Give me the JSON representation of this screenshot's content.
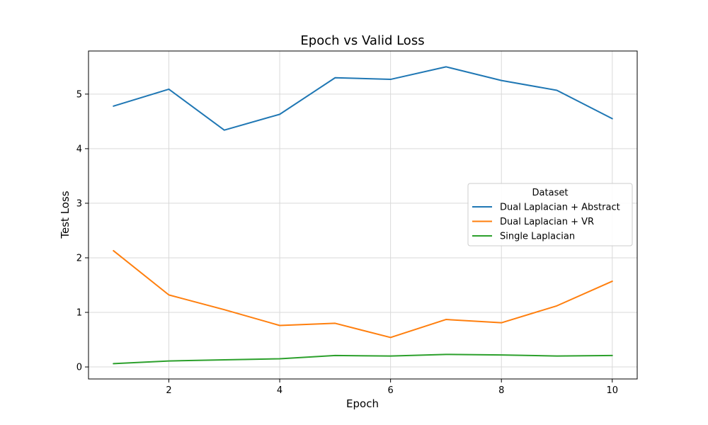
{
  "chart_data": {
    "type": "line",
    "title": "Epoch vs Valid Loss",
    "xlabel": "Epoch",
    "ylabel": "Test Loss",
    "x": [
      1,
      2,
      3,
      4,
      5,
      6,
      7,
      8,
      9,
      10
    ],
    "xlim": [
      0.55,
      10.45
    ],
    "ylim": [
      -0.22,
      5.79
    ],
    "xticks": [
      2,
      4,
      6,
      8,
      10
    ],
    "yticks": [
      0,
      1,
      2,
      3,
      4,
      5
    ],
    "grid": true,
    "legend": {
      "title": "Dataset",
      "placement": "center-right"
    },
    "series": [
      {
        "name": "Dual Laplacian + Abstract",
        "color": "#1f77b4",
        "values": [
          4.78,
          5.09,
          4.34,
          4.63,
          5.3,
          5.27,
          5.5,
          5.25,
          5.07,
          4.55
        ]
      },
      {
        "name": "Dual Laplacian + VR",
        "color": "#ff7f0e",
        "values": [
          2.13,
          1.32,
          1.05,
          0.76,
          0.8,
          0.54,
          0.87,
          0.81,
          1.12,
          1.57
        ]
      },
      {
        "name": "Single Laplacian",
        "color": "#2ca02c",
        "values": [
          0.06,
          0.11,
          0.13,
          0.15,
          0.21,
          0.2,
          0.23,
          0.22,
          0.2,
          0.21
        ]
      }
    ]
  }
}
